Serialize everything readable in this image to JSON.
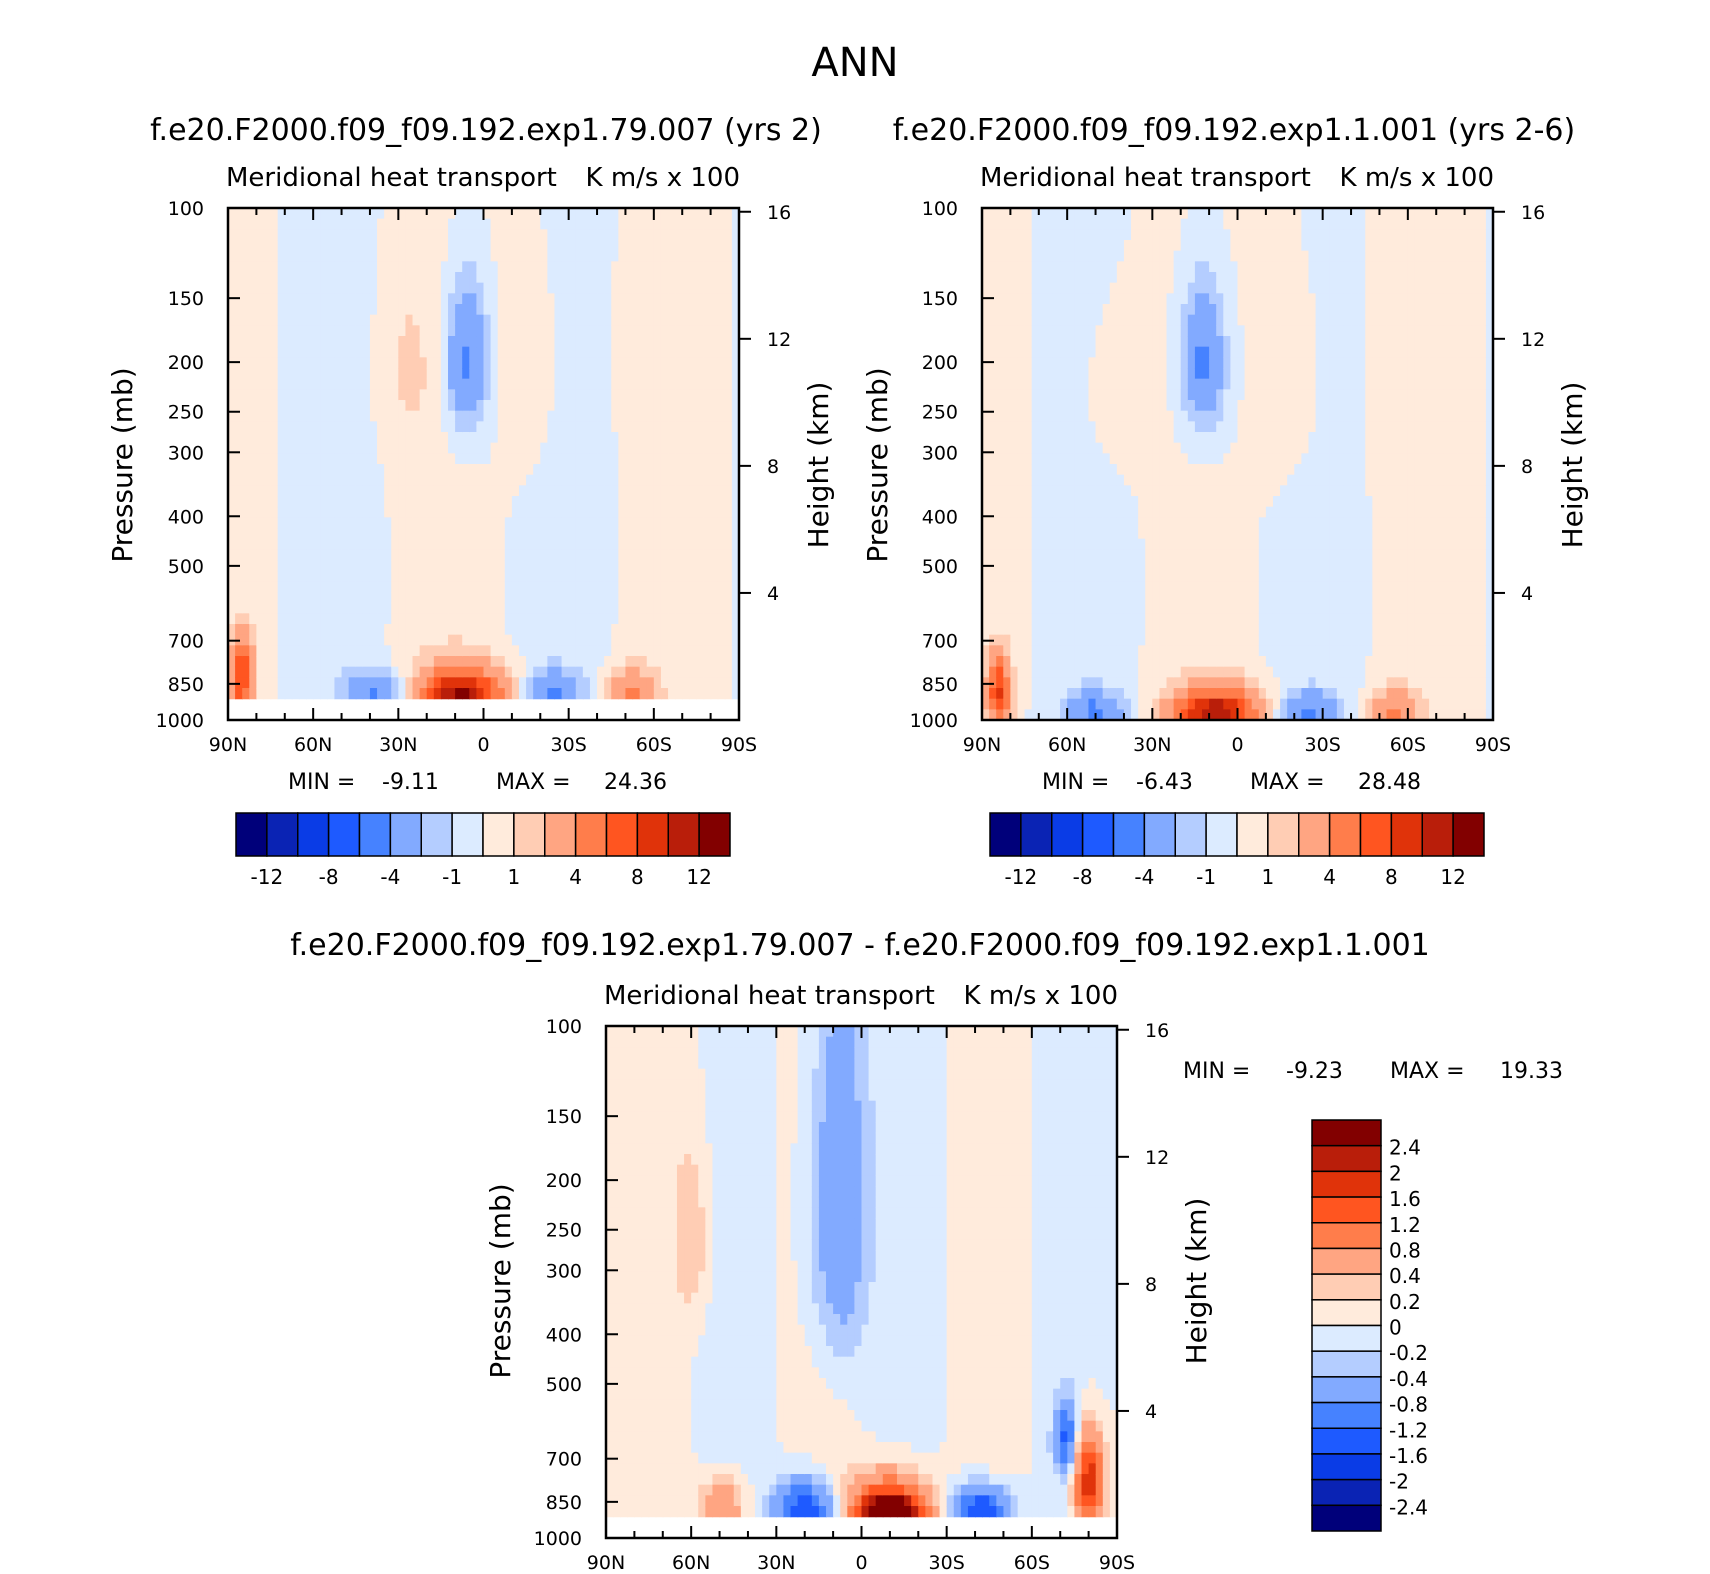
{
  "figure_title": "ANN",
  "chart_data": [
    {
      "id": "panel1",
      "type": "heatmap",
      "title": "f.e20.F2000.f09_f09.192.exp1.79.007 (yrs 2)",
      "left_label": "Meridional heat transport",
      "right_label": "K m/s x 100",
      "ylabel": "Pressure (mb)",
      "y2label": "Height (km)",
      "x_ticks": [
        "90N",
        "60N",
        "30N",
        "0",
        "30S",
        "60S",
        "90S"
      ],
      "y_ticks": [
        "100",
        "150",
        "200",
        "250",
        "300",
        "400",
        "500",
        "700",
        "850",
        "1000"
      ],
      "y2_ticks": [
        "16",
        "12",
        "8",
        "4"
      ],
      "min_label": "MIN =",
      "min_value": "-9.11",
      "max_label": "MAX =",
      "max_value": "24.36",
      "colorbar_labels": [
        "-12",
        "-8",
        "-4",
        "-1",
        "1",
        "4",
        "8",
        "12"
      ],
      "colorbar_colors": [
        "#00007a",
        "#0a23b4",
        "#0a3ce6",
        "#1e5aff",
        "#4682ff",
        "#82aaff",
        "#b4cdff",
        "#dcebff",
        "#ffebdc",
        "#ffcdb4",
        "#ffa582",
        "#ff7d4b",
        "#ff5520",
        "#e0330a",
        "#b91e0a",
        "#820000"
      ],
      "features": [
        {
          "lat": -15,
          "p": 200,
          "w": 14,
          "h": 150,
          "v": 1
        },
        {
          "lat": 6,
          "p": 210,
          "w": 14,
          "h": 130,
          "v": -1
        },
        {
          "lat": 6,
          "p": 200,
          "w": 7,
          "h": 60,
          "v": -4
        },
        {
          "lat": 26,
          "p": 210,
          "w": 12,
          "h": 90,
          "v": 1
        },
        {
          "lat": 6,
          "p": 860,
          "w": 18,
          "h": 110,
          "v": 4
        },
        {
          "lat": 8,
          "p": 890,
          "w": 12,
          "h": 70,
          "v": 8
        },
        {
          "lat": -24,
          "p": 880,
          "w": 10,
          "h": 80,
          "v": -4
        },
        {
          "lat": 38,
          "p": 880,
          "w": 10,
          "h": 80,
          "v": -4
        },
        {
          "lat": -52,
          "p": 880,
          "w": 8,
          "h": 90,
          "v": 4
        },
        {
          "lat": 85,
          "p": 820,
          "w": 4,
          "h": 130,
          "v": 8
        }
      ],
      "surface": 925
    },
    {
      "id": "panel2",
      "type": "heatmap",
      "title": "f.e20.F2000.f09_f09.192.exp1.1.001 (yrs 2-6)",
      "left_label": "Meridional heat transport",
      "right_label": "K m/s x 100",
      "ylabel": "Pressure (mb)",
      "y2label": "Height (km)",
      "x_ticks": [
        "90N",
        "60N",
        "30N",
        "0",
        "30S",
        "60S",
        "90S"
      ],
      "y_ticks": [
        "100",
        "150",
        "200",
        "250",
        "300",
        "400",
        "500",
        "700",
        "850",
        "1000"
      ],
      "y2_ticks": [
        "16",
        "12",
        "8",
        "4"
      ],
      "min_label": "MIN =",
      "min_value": "-6.43",
      "max_label": "MAX =",
      "max_value": "28.48",
      "colorbar_labels": [
        "-12",
        "-8",
        "-4",
        "-1",
        "1",
        "4",
        "8",
        "12"
      ],
      "colorbar_colors": [
        "#00007a",
        "#0a23b4",
        "#0a3ce6",
        "#1e5aff",
        "#4682ff",
        "#82aaff",
        "#b4cdff",
        "#dcebff",
        "#ffebdc",
        "#ffcdb4",
        "#ffa582",
        "#ff7d4b",
        "#ff5520",
        "#e0330a",
        "#b91e0a",
        "#820000"
      ],
      "features": [
        {
          "lat": -18,
          "p": 210,
          "w": 14,
          "h": 150,
          "v": 1
        },
        {
          "lat": 12,
          "p": 210,
          "w": 14,
          "h": 130,
          "v": -1
        },
        {
          "lat": 12,
          "p": 200,
          "w": 7,
          "h": 60,
          "v": -4
        },
        {
          "lat": 42,
          "p": 230,
          "w": 14,
          "h": 100,
          "v": 1
        },
        {
          "lat": 6,
          "p": 940,
          "w": 18,
          "h": 110,
          "v": 4
        },
        {
          "lat": 8,
          "p": 970,
          "w": 12,
          "h": 70,
          "v": 8
        },
        {
          "lat": -25,
          "p": 960,
          "w": 10,
          "h": 80,
          "v": -4
        },
        {
          "lat": 50,
          "p": 960,
          "w": 10,
          "h": 80,
          "v": -4
        },
        {
          "lat": -55,
          "p": 960,
          "w": 8,
          "h": 90,
          "v": 4
        },
        {
          "lat": 84,
          "p": 880,
          "w": 4,
          "h": 130,
          "v": 8
        }
      ],
      "surface": 1000
    },
    {
      "id": "panel3",
      "type": "heatmap",
      "title": "f.e20.F2000.f09_f09.192.exp1.79.007 - f.e20.F2000.f09_f09.192.exp1.1.001",
      "left_label": "Meridional heat transport",
      "right_label": "K m/s x 100",
      "ylabel": "Pressure (mb)",
      "y2label": "Height (km)",
      "x_ticks": [
        "90N",
        "60N",
        "30N",
        "0",
        "30S",
        "60S",
        "90S"
      ],
      "y_ticks": [
        "100",
        "150",
        "200",
        "250",
        "300",
        "400",
        "500",
        "700",
        "850",
        "1000"
      ],
      "y2_ticks": [
        "16",
        "12",
        "8",
        "4"
      ],
      "min_label": "MIN =",
      "min_value": "-9.23",
      "max_label": "MAX =",
      "max_value": "19.33",
      "colorbar_labels": [
        "2.4",
        "2",
        "1.6",
        "1.2",
        "0.8",
        "0.4",
        "0.2",
        "0",
        "-0.2",
        "-0.4",
        "-0.8",
        "-1.2",
        "-1.6",
        "-2",
        "-2.4"
      ],
      "colorbar_colors": [
        "#820000",
        "#b91e0a",
        "#e0330a",
        "#ff5520",
        "#ff7d4b",
        "#ffa582",
        "#ffcdb4",
        "#ffebdc",
        "#dcebff",
        "#b4cdff",
        "#82aaff",
        "#4682ff",
        "#1e5aff",
        "#0a3ce6",
        "#0a23b4",
        "#00007a"
      ],
      "features": [
        {
          "lat": 8,
          "p": 230,
          "w": 10,
          "h": 200,
          "v": -0.8
        },
        {
          "lat": 60,
          "p": 260,
          "w": 6,
          "h": 100,
          "v": 0.4
        },
        {
          "lat": -10,
          "p": 870,
          "w": 14,
          "h": 130,
          "v": 1.6
        },
        {
          "lat": -10,
          "p": 890,
          "w": 10,
          "h": 60,
          "v": 2.4
        },
        {
          "lat": 20,
          "p": 880,
          "w": 10,
          "h": 110,
          "v": -1.6
        },
        {
          "lat": 49,
          "p": 870,
          "w": 8,
          "h": 110,
          "v": 0.8
        },
        {
          "lat": -42,
          "p": 880,
          "w": 10,
          "h": 90,
          "v": -1.6
        },
        {
          "lat": -80,
          "p": 780,
          "w": 5,
          "h": 160,
          "v": 2.0
        },
        {
          "lat": -72,
          "p": 640,
          "w": 4,
          "h": 100,
          "v": -1.2
        }
      ],
      "surface": 925
    }
  ]
}
